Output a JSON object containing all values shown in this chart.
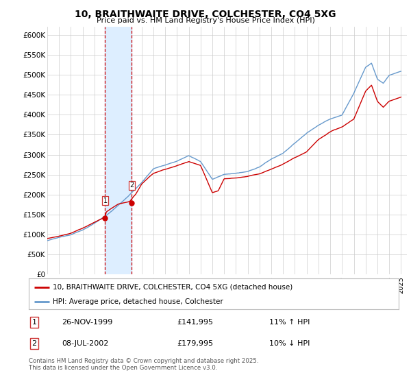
{
  "title": "10, BRAITHWAITE DRIVE, COLCHESTER, CO4 5XG",
  "subtitle": "Price paid vs. HM Land Registry's House Price Index (HPI)",
  "ylabel_ticks": [
    "£0",
    "£50K",
    "£100K",
    "£150K",
    "£200K",
    "£250K",
    "£300K",
    "£350K",
    "£400K",
    "£450K",
    "£500K",
    "£550K",
    "£600K"
  ],
  "ylim": [
    0,
    620000
  ],
  "ytick_vals": [
    0,
    50000,
    100000,
    150000,
    200000,
    250000,
    300000,
    350000,
    400000,
    450000,
    500000,
    550000,
    600000
  ],
  "purchase1_date": "26-NOV-1999",
  "purchase1_price": 141995,
  "purchase2_date": "08-JUL-2002",
  "purchase2_price": 179995,
  "purchase1_hpi_text": "11% ↑ HPI",
  "purchase2_hpi_text": "10% ↓ HPI",
  "legend_line1": "10, BRAITHWAITE DRIVE, COLCHESTER, CO4 5XG (detached house)",
  "legend_line2": "HPI: Average price, detached house, Colchester",
  "footer": "Contains HM Land Registry data © Crown copyright and database right 2025.\nThis data is licensed under the Open Government Licence v3.0.",
  "line_color_red": "#cc0000",
  "line_color_blue": "#6699cc",
  "shade_color": "#ddeeff",
  "vline_color": "#cc0000",
  "background_color": "#ffffff",
  "grid_color": "#cccccc",
  "hpi_anchors_y": [
    1995.0,
    1996.0,
    1997.0,
    1998.0,
    1999.0,
    2000.0,
    2001.0,
    2002.0,
    2003.0,
    2004.0,
    2005.0,
    2006.0,
    2007.0,
    2008.0,
    2009.0,
    2010.0,
    2011.0,
    2012.0,
    2013.0,
    2014.0,
    2015.0,
    2016.0,
    2017.0,
    2018.0,
    2019.0,
    2020.0,
    2021.0,
    2022.0,
    2022.5,
    2023.0,
    2023.5,
    2024.0,
    2025.0
  ],
  "hpi_anchors_v": [
    85000,
    92000,
    100000,
    112000,
    128000,
    148000,
    173000,
    200000,
    230000,
    265000,
    275000,
    285000,
    300000,
    285000,
    240000,
    252000,
    255000,
    258000,
    270000,
    290000,
    305000,
    330000,
    355000,
    375000,
    390000,
    400000,
    455000,
    520000,
    530000,
    490000,
    480000,
    500000,
    510000
  ],
  "red_anchors_y": [
    1995.0,
    1996.0,
    1997.0,
    1998.0,
    1999.0,
    1999.9,
    2000.0,
    2001.0,
    2002.0,
    2002.5,
    2003.0,
    2004.0,
    2005.0,
    2006.0,
    2007.0,
    2008.0,
    2009.0,
    2009.5,
    2010.0,
    2011.0,
    2012.0,
    2013.0,
    2014.0,
    2015.0,
    2016.0,
    2017.0,
    2018.0,
    2019.0,
    2020.0,
    2021.0,
    2022.0,
    2022.5,
    2023.0,
    2023.5,
    2024.0,
    2025.0
  ],
  "red_anchors_v": [
    90000,
    96000,
    103000,
    115000,
    130000,
    142000,
    155000,
    175000,
    182000,
    200000,
    225000,
    252000,
    262000,
    272000,
    282000,
    272000,
    205000,
    210000,
    240000,
    242000,
    245000,
    252000,
    265000,
    278000,
    295000,
    310000,
    340000,
    358000,
    370000,
    390000,
    460000,
    475000,
    435000,
    420000,
    435000,
    445000
  ]
}
